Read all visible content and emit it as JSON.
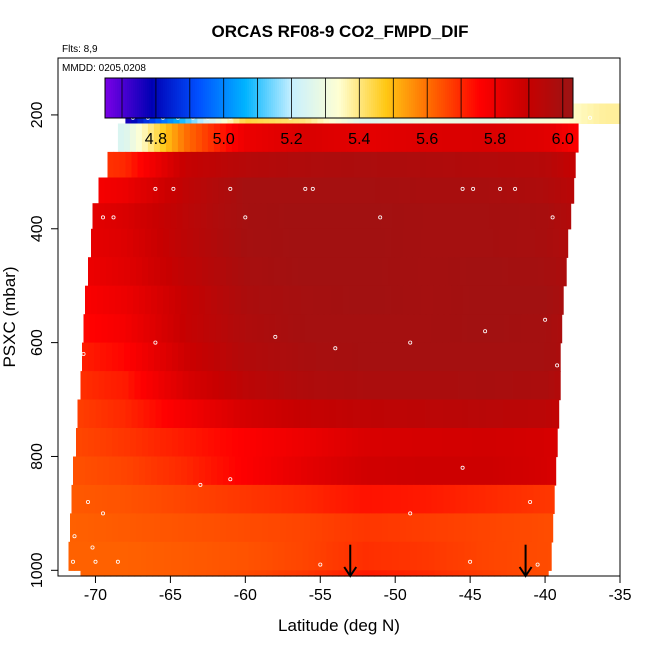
{
  "chart_data": {
    "type": "heatmap",
    "title": "ORCAS RF08-9 CO2_FMPD_DIF",
    "flights_note": "Flts: 8,9",
    "dates_note": "MMDD: 0205,0208",
    "xlabel": "Latitude (deg N)",
    "ylabel": "PSXC (mbar)",
    "xlim": [
      -72.5,
      -35
    ],
    "ylim": [
      1010,
      100
    ],
    "x_ticks": [
      -70,
      -65,
      -60,
      -55,
      -50,
      -45,
      -40,
      -35
    ],
    "x_tick_labels": [
      "-70",
      "-65",
      "-60",
      "-55",
      "-50",
      "-45",
      "-40",
      "-35"
    ],
    "y_ticks": [
      200,
      400,
      600,
      800,
      1000
    ],
    "y_tick_labels": [
      "200",
      "400",
      "600",
      "800",
      "1000"
    ],
    "colorbar": {
      "range": [
        4.65,
        6.03
      ],
      "ticks": [
        4.8,
        5.0,
        5.2,
        5.4,
        5.6,
        5.8,
        6.0
      ],
      "tick_labels": [
        "4.8",
        "5.0",
        "5.2",
        "5.4",
        "5.6",
        "5.8",
        "6.0"
      ],
      "colors": [
        "#7a00e6",
        "#0000b4",
        "#0050ff",
        "#00b4ff",
        "#c8f0ff",
        "#ffffd2",
        "#ffc814",
        "#ff6400",
        "#ff0000",
        "#c80000",
        "#9b1414"
      ]
    },
    "layers": [
      {
        "p_top": 180,
        "p_bot": 215,
        "lat_min": -68.0,
        "lat_max": -35.0
      },
      {
        "p_top": 215,
        "p_bot": 265,
        "lat_min": -68.5,
        "lat_max": -37.8
      },
      {
        "p_top": 265,
        "p_bot": 310,
        "lat_min": -69.2,
        "lat_max": -38.0
      },
      {
        "p_top": 310,
        "p_bot": 355,
        "lat_min": -69.8,
        "lat_max": -38.1
      },
      {
        "p_top": 355,
        "p_bot": 400,
        "lat_min": -70.2,
        "lat_max": -38.3
      },
      {
        "p_top": 400,
        "p_bot": 450,
        "lat_min": -70.3,
        "lat_max": -38.5
      },
      {
        "p_top": 450,
        "p_bot": 500,
        "lat_min": -70.5,
        "lat_max": -38.6
      },
      {
        "p_top": 500,
        "p_bot": 550,
        "lat_min": -70.7,
        "lat_max": -38.8
      },
      {
        "p_top": 550,
        "p_bot": 600,
        "lat_min": -70.8,
        "lat_max": -38.9
      },
      {
        "p_top": 600,
        "p_bot": 650,
        "lat_min": -70.9,
        "lat_max": -39.0
      },
      {
        "p_top": 650,
        "p_bot": 700,
        "lat_min": -71.0,
        "lat_max": -39.0
      },
      {
        "p_top": 700,
        "p_bot": 750,
        "lat_min": -71.2,
        "lat_max": -39.1
      },
      {
        "p_top": 750,
        "p_bot": 800,
        "lat_min": -71.3,
        "lat_max": -39.2
      },
      {
        "p_top": 800,
        "p_bot": 850,
        "lat_min": -71.5,
        "lat_max": -39.3
      },
      {
        "p_top": 850,
        "p_bot": 900,
        "lat_min": -71.6,
        "lat_max": -39.4
      },
      {
        "p_top": 900,
        "p_bot": 950,
        "lat_min": -71.7,
        "lat_max": -39.5
      },
      {
        "p_top": 950,
        "p_bot": 1000,
        "lat_min": -71.8,
        "lat_max": -39.6
      },
      {
        "p_top": 1000,
        "p_bot": 1010,
        "lat_min": -71.0,
        "lat_max": -39.8
      }
    ],
    "layer_lat_grid": [
      -72,
      -68,
      -64,
      -60,
      -56,
      -52,
      -48,
      -44,
      -40,
      -36
    ],
    "layer_values": [
      [
        5.0,
        4.75,
        5.1,
        5.45,
        5.4,
        5.25,
        5.3,
        5.28,
        5.32,
        5.38
      ],
      [
        5.2,
        5.25,
        5.6,
        5.8,
        5.85,
        5.82,
        5.84,
        5.85,
        5.83,
        5.7
      ],
      [
        5.65,
        5.7,
        5.9,
        5.95,
        5.97,
        5.98,
        5.97,
        5.96,
        5.95,
        5.85
      ],
      [
        5.75,
        5.8,
        5.92,
        6.0,
        6.0,
        6.0,
        5.99,
        5.99,
        5.97,
        5.9
      ],
      [
        5.8,
        5.85,
        5.93,
        6.0,
        6.01,
        6.01,
        6.0,
        6.0,
        5.99,
        5.92
      ],
      [
        5.8,
        5.84,
        5.93,
        6.0,
        6.01,
        6.01,
        6.0,
        6.0,
        5.99,
        5.93
      ],
      [
        5.78,
        5.83,
        5.92,
        5.99,
        6.01,
        6.01,
        6.0,
        6.01,
        6.0,
        5.93
      ],
      [
        5.75,
        5.8,
        5.9,
        5.98,
        6.0,
        6.01,
        6.0,
        6.01,
        6.01,
        5.93
      ],
      [
        5.73,
        5.78,
        5.9,
        5.97,
        6.0,
        6.0,
        6.0,
        6.01,
        6.0,
        5.92
      ],
      [
        5.7,
        5.75,
        5.88,
        5.96,
        5.99,
        6.0,
        6.0,
        6.0,
        6.0,
        5.92
      ],
      [
        5.68,
        5.72,
        5.85,
        5.93,
        5.97,
        5.98,
        5.98,
        5.99,
        5.98,
        5.9
      ],
      [
        5.66,
        5.7,
        5.78,
        5.86,
        5.9,
        5.92,
        5.93,
        5.94,
        5.93,
        5.85
      ],
      [
        5.65,
        5.68,
        5.72,
        5.76,
        5.8,
        5.85,
        5.86,
        5.87,
        5.86,
        5.8
      ],
      [
        5.64,
        5.66,
        5.7,
        5.76,
        5.82,
        5.87,
        5.88,
        5.88,
        5.86,
        5.8
      ],
      [
        5.63,
        5.64,
        5.66,
        5.68,
        5.7,
        5.73,
        5.72,
        5.7,
        5.68,
        5.66
      ],
      [
        5.62,
        5.63,
        5.64,
        5.65,
        5.66,
        5.68,
        5.67,
        5.66,
        5.65,
        5.64
      ],
      [
        5.62,
        5.62,
        5.63,
        5.64,
        5.66,
        5.69,
        5.68,
        5.66,
        5.65,
        5.64
      ],
      [
        5.62,
        5.62,
        5.63,
        5.65,
        5.68,
        5.72,
        5.7,
        5.67,
        5.65,
        5.64
      ]
    ],
    "sample_points": [
      {
        "lat": -67.5,
        "p": 205
      },
      {
        "lat": -66.5,
        "p": 205
      },
      {
        "lat": -65.5,
        "p": 205
      },
      {
        "lat": -64.5,
        "p": 205
      },
      {
        "lat": -63.5,
        "p": 205
      },
      {
        "lat": -62.5,
        "p": 205
      },
      {
        "lat": -61.0,
        "p": 205
      },
      {
        "lat": -57.0,
        "p": 205
      },
      {
        "lat": -42.5,
        "p": 205
      },
      {
        "lat": -37.0,
        "p": 205
      },
      {
        "lat": -66.0,
        "p": 330
      },
      {
        "lat": -64.8,
        "p": 330
      },
      {
        "lat": -61.0,
        "p": 330
      },
      {
        "lat": -56.0,
        "p": 330
      },
      {
        "lat": -55.5,
        "p": 330
      },
      {
        "lat": -45.5,
        "p": 330
      },
      {
        "lat": -44.8,
        "p": 330
      },
      {
        "lat": -43.0,
        "p": 330
      },
      {
        "lat": -42.0,
        "p": 330
      },
      {
        "lat": -69.5,
        "p": 380
      },
      {
        "lat": -68.8,
        "p": 380
      },
      {
        "lat": -60.0,
        "p": 380
      },
      {
        "lat": -51.0,
        "p": 380
      },
      {
        "lat": -39.5,
        "p": 380
      },
      {
        "lat": -71.2,
        "p": 560
      },
      {
        "lat": -70.8,
        "p": 620
      },
      {
        "lat": -66.0,
        "p": 600
      },
      {
        "lat": -58.0,
        "p": 590
      },
      {
        "lat": -54.0,
        "p": 610
      },
      {
        "lat": -49.0,
        "p": 600
      },
      {
        "lat": -44.0,
        "p": 580
      },
      {
        "lat": -40.0,
        "p": 560
      },
      {
        "lat": -39.2,
        "p": 640
      },
      {
        "lat": -71.8,
        "p": 860
      },
      {
        "lat": -70.5,
        "p": 880
      },
      {
        "lat": -69.5,
        "p": 900
      },
      {
        "lat": -71.4,
        "p": 940
      },
      {
        "lat": -70.2,
        "p": 960
      },
      {
        "lat": -63.0,
        "p": 850
      },
      {
        "lat": -61.0,
        "p": 840
      },
      {
        "lat": -49.0,
        "p": 900
      },
      {
        "lat": -45.5,
        "p": 820
      },
      {
        "lat": -41.0,
        "p": 880
      },
      {
        "lat": -71.5,
        "p": 985
      },
      {
        "lat": -70.0,
        "p": 985
      },
      {
        "lat": -68.5,
        "p": 985
      },
      {
        "lat": -55.0,
        "p": 990
      },
      {
        "lat": -45.0,
        "p": 985
      },
      {
        "lat": -40.5,
        "p": 990
      }
    ],
    "arrows": [
      {
        "lat": -53.0,
        "p_from": 955,
        "p_to": 1010
      },
      {
        "lat": -41.3,
        "p_from": 955,
        "p_to": 1010
      }
    ]
  }
}
